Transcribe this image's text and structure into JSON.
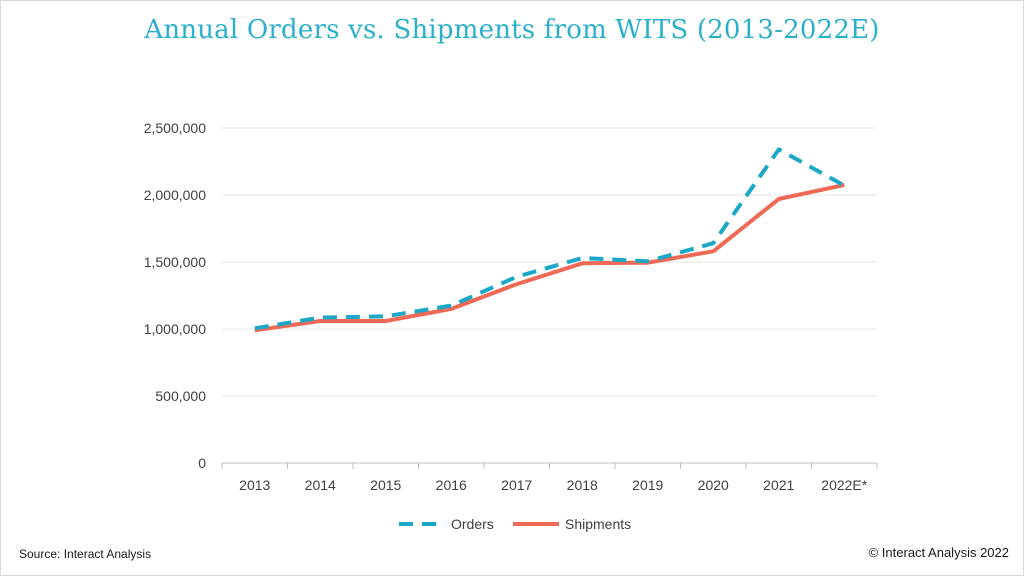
{
  "chart_data": {
    "type": "line",
    "title": "Annual Orders vs. Shipments from WITS (2013-2022E)",
    "categories": [
      "2013",
      "2014",
      "2015",
      "2016",
      "2017",
      "2018",
      "2019",
      "2020",
      "2021",
      "2022E*"
    ],
    "series": [
      {
        "name": "Orders",
        "color": "#1ba8c8",
        "line_style": "dashed",
        "values": [
          1005000,
          1085000,
          1095000,
          1175000,
          1390000,
          1530000,
          1505000,
          1640000,
          2340000,
          2070000
        ]
      },
      {
        "name": "Shipments",
        "color": "#ee6a56",
        "line_style": "solid",
        "values": [
          990000,
          1060000,
          1060000,
          1150000,
          1335000,
          1490000,
          1495000,
          1580000,
          1970000,
          2075000
        ]
      }
    ],
    "yticks": [
      "0",
      "500,000",
      "1,000,000",
      "1,500,000",
      "2,000,000",
      "2,500,000"
    ],
    "ylim": [
      0,
      2500000
    ],
    "grid": "horizontal",
    "legend_position": "bottom"
  },
  "footer": {
    "source": "Source: Interact Analysis",
    "copyright": "© Interact Analysis 2022"
  }
}
